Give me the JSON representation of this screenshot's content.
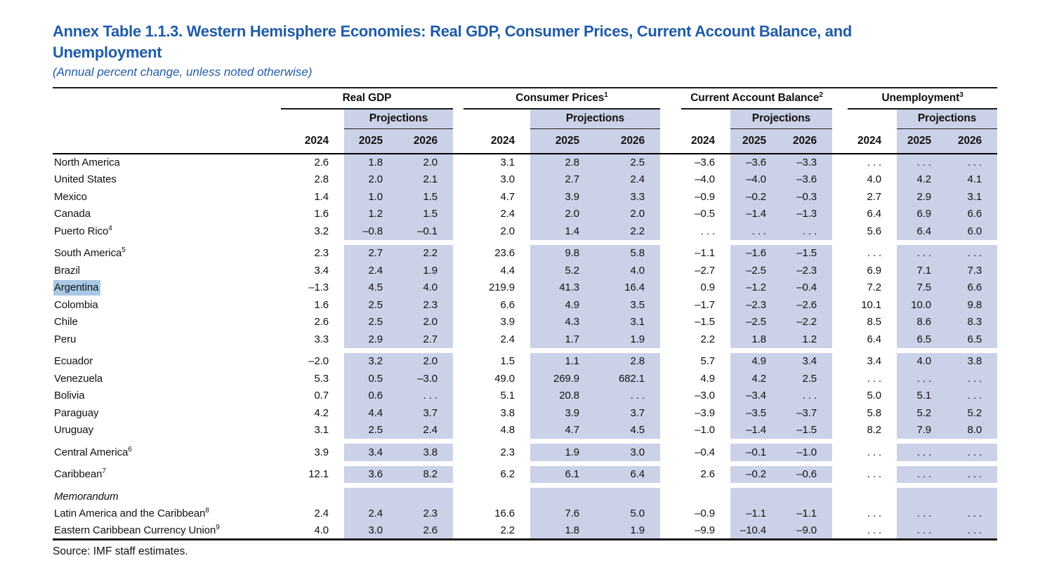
{
  "page": {
    "title_lines": [
      "Annex Table 1.1.3. Western Hemisphere Economies: Real GDP, Consumer Prices, Current Account Balance, and",
      "Unemployment"
    ],
    "subtitle": "(Annual percent change, unless noted otherwise)",
    "source": "Source: IMF staff estimates."
  },
  "colors": {
    "title_blue": "#1f5ba8",
    "projection_band": "#cbd2e8",
    "selection_highlight": "#a9c8e4"
  },
  "table": {
    "projections_label": "Projections",
    "years": [
      "2024",
      "2025",
      "2026"
    ],
    "column_groups": [
      {
        "label": "Real GDP",
        "sup": ""
      },
      {
        "label": "Consumer Prices",
        "sup": "1"
      },
      {
        "label": "Current Account Balance",
        "sup": "2"
      },
      {
        "label": "Unemployment",
        "sup": "3"
      }
    ],
    "rows": [
      {
        "label": "North America",
        "sup": "",
        "style": "bold",
        "highlight": false,
        "spacer_before": false,
        "values": [
          "2.6",
          "1.8",
          "2.0",
          "3.1",
          "2.8",
          "2.5",
          "–3.6",
          "–3.6",
          "–3.3",
          ". . .",
          ". . .",
          ". . ."
        ]
      },
      {
        "label": "United States",
        "sup": "",
        "style": "",
        "highlight": false,
        "spacer_before": false,
        "values": [
          "2.8",
          "2.0",
          "2.1",
          "3.0",
          "2.7",
          "2.4",
          "–4.0",
          "–4.0",
          "–3.6",
          "4.0",
          "4.2",
          "4.1"
        ]
      },
      {
        "label": "Mexico",
        "sup": "",
        "style": "",
        "highlight": false,
        "spacer_before": false,
        "values": [
          "1.4",
          "1.0",
          "1.5",
          "4.7",
          "3.9",
          "3.3",
          "–0.9",
          "–0.2",
          "–0.3",
          "2.7",
          "2.9",
          "3.1"
        ]
      },
      {
        "label": "Canada",
        "sup": "",
        "style": "",
        "highlight": false,
        "spacer_before": false,
        "values": [
          "1.6",
          "1.2",
          "1.5",
          "2.4",
          "2.0",
          "2.0",
          "–0.5",
          "–1.4",
          "–1.3",
          "6.4",
          "6.9",
          "6.6"
        ]
      },
      {
        "label": "Puerto Rico",
        "sup": "4",
        "style": "",
        "highlight": false,
        "spacer_before": false,
        "values": [
          "3.2",
          "–0.8",
          "–0.1",
          "2.0",
          "1.4",
          "2.2",
          ". . .",
          ". . .",
          ". . .",
          "5.6",
          "6.4",
          "6.0"
        ]
      },
      {
        "label": "South America",
        "sup": "5",
        "style": "bold",
        "highlight": false,
        "spacer_before": true,
        "values": [
          "2.3",
          "2.7",
          "2.2",
          "23.6",
          "9.8",
          "5.8",
          "–1.1",
          "–1.6",
          "–1.5",
          ". . .",
          ". . .",
          ". . ."
        ]
      },
      {
        "label": "Brazil",
        "sup": "",
        "style": "",
        "highlight": false,
        "spacer_before": false,
        "values": [
          "3.4",
          "2.4",
          "1.9",
          "4.4",
          "5.2",
          "4.0",
          "–2.7",
          "–2.5",
          "–2.3",
          "6.9",
          "7.1",
          "7.3"
        ]
      },
      {
        "label": "Argentina",
        "sup": "",
        "style": "",
        "highlight": true,
        "spacer_before": false,
        "values": [
          "–1.3",
          "4.5",
          "4.0",
          "219.9",
          "41.3",
          "16.4",
          "0.9",
          "–1.2",
          "–0.4",
          "7.2",
          "7.5",
          "6.6"
        ]
      },
      {
        "label": "Colombia",
        "sup": "",
        "style": "",
        "highlight": false,
        "spacer_before": false,
        "values": [
          "1.6",
          "2.5",
          "2.3",
          "6.6",
          "4.9",
          "3.5",
          "–1.7",
          "–2.3",
          "–2.6",
          "10.1",
          "10.0",
          "9.8"
        ]
      },
      {
        "label": "Chile",
        "sup": "",
        "style": "",
        "highlight": false,
        "spacer_before": false,
        "values": [
          "2.6",
          "2.5",
          "2.0",
          "3.9",
          "4.3",
          "3.1",
          "–1.5",
          "–2.5",
          "–2.2",
          "8.5",
          "8.6",
          "8.3"
        ]
      },
      {
        "label": "Peru",
        "sup": "",
        "style": "",
        "highlight": false,
        "spacer_before": false,
        "values": [
          "3.3",
          "2.9",
          "2.7",
          "2.4",
          "1.7",
          "1.9",
          "2.2",
          "1.8",
          "1.2",
          "6.4",
          "6.5",
          "6.5"
        ]
      },
      {
        "label": "Ecuador",
        "sup": "",
        "style": "",
        "highlight": false,
        "spacer_before": true,
        "values": [
          "–2.0",
          "3.2",
          "2.0",
          "1.5",
          "1.1",
          "2.8",
          "5.7",
          "4.9",
          "3.4",
          "3.4",
          "4.0",
          "3.8"
        ]
      },
      {
        "label": "Venezuela",
        "sup": "",
        "style": "",
        "highlight": false,
        "spacer_before": false,
        "values": [
          "5.3",
          "0.5",
          "–3.0",
          "49.0",
          "269.9",
          "682.1",
          "4.9",
          "4.2",
          "2.5",
          ". . .",
          ". . .",
          ". . ."
        ]
      },
      {
        "label": "Bolivia",
        "sup": "",
        "style": "",
        "highlight": false,
        "spacer_before": false,
        "values": [
          "0.7",
          "0.6",
          ". . .",
          "5.1",
          "20.8",
          ". . .",
          "–3.0",
          "–3.4",
          ". . .",
          "5.0",
          "5.1",
          ". . ."
        ]
      },
      {
        "label": "Paraguay",
        "sup": "",
        "style": "",
        "highlight": false,
        "spacer_before": false,
        "values": [
          "4.2",
          "4.4",
          "3.7",
          "3.8",
          "3.9",
          "3.7",
          "–3.9",
          "–3.5",
          "–3.7",
          "5.8",
          "5.2",
          "5.2"
        ]
      },
      {
        "label": "Uruguay",
        "sup": "",
        "style": "",
        "highlight": false,
        "spacer_before": false,
        "values": [
          "3.1",
          "2.5",
          "2.4",
          "4.8",
          "4.7",
          "4.5",
          "–1.0",
          "–1.4",
          "–1.5",
          "8.2",
          "7.9",
          "8.0"
        ]
      },
      {
        "label": "Central America",
        "sup": "6",
        "style": "bold",
        "highlight": false,
        "spacer_before": true,
        "values": [
          "3.9",
          "3.4",
          "3.8",
          "2.3",
          "1.9",
          "3.0",
          "–0.4",
          "–0.1",
          "–1.0",
          ". . .",
          ". . .",
          ". . ."
        ]
      },
      {
        "label": "Caribbean",
        "sup": "7",
        "style": "bold",
        "highlight": false,
        "spacer_before": true,
        "values": [
          "12.1",
          "3.6",
          "8.2",
          "6.2",
          "6.1",
          "6.4",
          "2.6",
          "–0.2",
          "–0.6",
          ". . .",
          ". . .",
          ". . ."
        ]
      },
      {
        "label": "Memorandum",
        "sup": "",
        "style": "italic",
        "highlight": false,
        "spacer_before": true,
        "values": []
      },
      {
        "label": "Latin America and the Caribbean",
        "sup": "8",
        "style": "",
        "highlight": false,
        "spacer_before": false,
        "values": [
          "2.4",
          "2.4",
          "2.3",
          "16.6",
          "7.6",
          "5.0",
          "–0.9",
          "–1.1",
          "–1.1",
          ". . .",
          ". . .",
          ". . ."
        ]
      },
      {
        "label": "Eastern Caribbean Currency Union",
        "sup": "9",
        "style": "",
        "highlight": false,
        "spacer_before": false,
        "values": [
          "4.0",
          "3.0",
          "2.6",
          "2.2",
          "1.8",
          "1.9",
          "–9.9",
          "–10.4",
          "–9.0",
          ". . .",
          ". . .",
          ". . ."
        ]
      }
    ]
  }
}
